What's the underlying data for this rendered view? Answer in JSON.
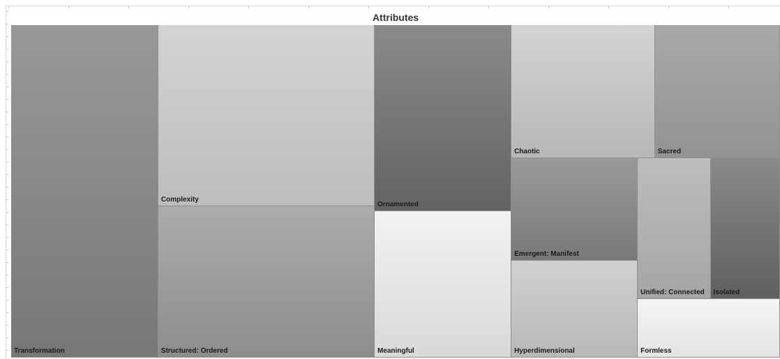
{
  "chart_data": {
    "type": "treemap",
    "title": "Attributes",
    "items": [
      {
        "label": "Transformation",
        "value": 100,
        "shade": [
          "#999999",
          "#777777"
        ]
      },
      {
        "label": "Complexity",
        "value": 80,
        "shade": [
          "#d3d3d3",
          "#bdbdbd"
        ]
      },
      {
        "label": "Structured: Ordered",
        "value": 67,
        "shade": [
          "#acacac",
          "#8d8d8d"
        ]
      },
      {
        "label": "Ornamented",
        "value": 52,
        "shade": [
          "#8a8a8a",
          "#636363"
        ]
      },
      {
        "label": "Meaningful",
        "value": 41,
        "shade": [
          "#f2f2f2",
          "#d9d9d9"
        ]
      },
      {
        "label": "Chaotic",
        "value": 39,
        "shade": [
          "#d3d3d3",
          "#b7b7b7"
        ]
      },
      {
        "label": "Sacred",
        "value": 34,
        "shade": [
          "#a9a9a9",
          "#939393"
        ]
      },
      {
        "label": "Emergent: Manifest",
        "value": 26.5,
        "shade": [
          "#9a9a9a",
          "#797979"
        ]
      },
      {
        "label": "Hyperdimensional",
        "value": 25,
        "shade": [
          "#d0d0d0",
          "#b8b8b8"
        ]
      },
      {
        "label": "Unified: Connected",
        "value": 21,
        "shade": [
          "#bdbdbd",
          "#a5a5a5"
        ]
      },
      {
        "label": "Isolated",
        "value": 20,
        "shade": [
          "#8a8a8a",
          "#5f5f5f"
        ]
      },
      {
        "label": "Formless",
        "value": 17,
        "shade": [
          "#f4f4f4",
          "#e4e4e4"
        ]
      }
    ]
  }
}
